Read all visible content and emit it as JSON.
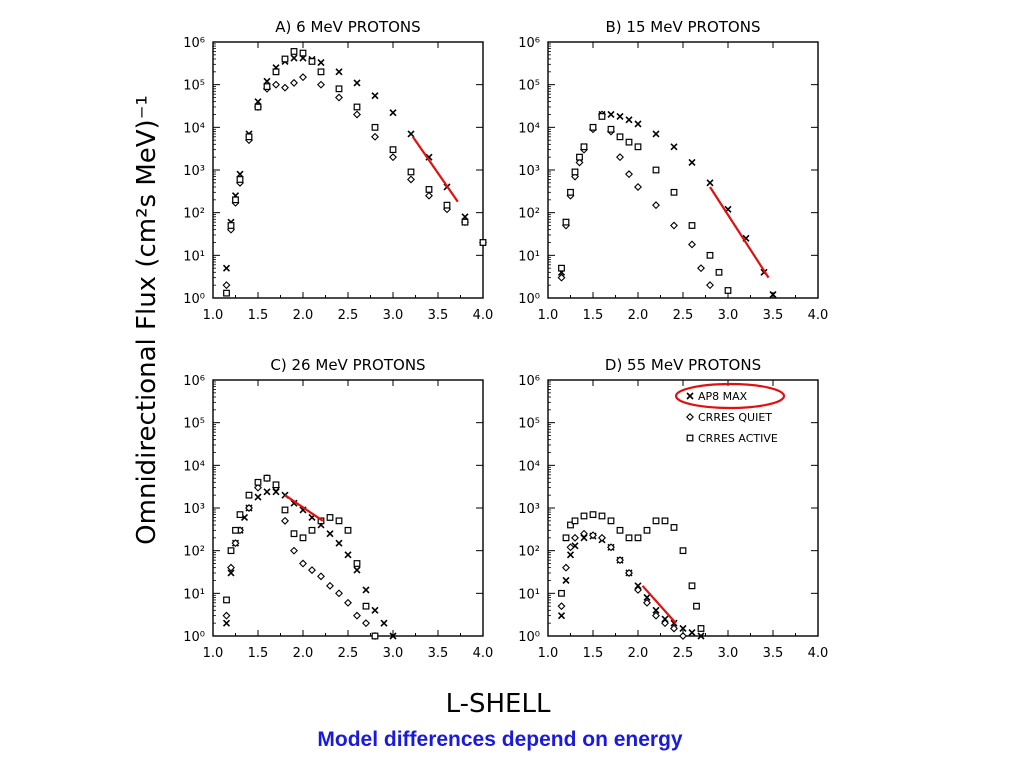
{
  "figure": {
    "y_axis_label": "Omnidirectional Flux (cm²s MeV)⁻¹",
    "x_axis_label": "L-SHELL",
    "caption": "Model differences depend on energy",
    "highlight_color": "#e01010",
    "caption_color": "#1a1adc"
  },
  "legend": {
    "entries": [
      {
        "label": "AP8 MAX",
        "marker": "x"
      },
      {
        "label": "CRRES QUIET",
        "marker": "diamond"
      },
      {
        "label": "CRRES ACTIVE",
        "marker": "square"
      }
    ],
    "circled_entry": "AP8 MAX"
  },
  "chart_data": [
    {
      "type": "scatter",
      "title": "A) 6 MeV PROTONS",
      "x_ticks": [
        "1.0",
        "1.5",
        "2.0",
        "2.5",
        "3.0",
        "3.5",
        "4.0"
      ],
      "y_ticks": [
        "10⁰",
        "10¹",
        "10²",
        "10³",
        "10⁴",
        "10⁵",
        "10⁶"
      ],
      "xlim": [
        1.0,
        4.0
      ],
      "ylim": [
        1,
        1000000
      ],
      "yscale": "log",
      "series": [
        {
          "name": "AP8 MAX",
          "marker": "x",
          "x": [
            1.15,
            1.2,
            1.25,
            1.3,
            1.4,
            1.5,
            1.6,
            1.7,
            1.8,
            1.9,
            2.0,
            2.1,
            2.2,
            2.4,
            2.6,
            2.8,
            3.0,
            3.2,
            3.4,
            3.6,
            3.8,
            4.0
          ],
          "y": [
            5,
            60,
            250,
            800,
            7000,
            40000,
            120000,
            250000,
            350000,
            420000,
            420000,
            390000,
            330000,
            200000,
            110000,
            55000,
            22000,
            7000,
            2000,
            400,
            80,
            20
          ]
        },
        {
          "name": "CRRES QUIET",
          "marker": "diamond",
          "x": [
            1.15,
            1.2,
            1.25,
            1.3,
            1.4,
            1.5,
            1.6,
            1.7,
            1.8,
            1.9,
            2.0,
            2.2,
            2.4,
            2.6,
            2.8,
            3.0,
            3.2,
            3.4,
            3.6,
            3.8,
            4.0
          ],
          "y": [
            2,
            40,
            170,
            500,
            5000,
            30000,
            80000,
            100000,
            85000,
            110000,
            150000,
            100000,
            50000,
            20000,
            6000,
            2000,
            600,
            250,
            120,
            60,
            20
          ]
        },
        {
          "name": "CRRES ACTIVE",
          "marker": "square",
          "x": [
            1.15,
            1.2,
            1.25,
            1.3,
            1.4,
            1.5,
            1.6,
            1.7,
            1.8,
            1.9,
            2.0,
            2.1,
            2.2,
            2.4,
            2.6,
            2.8,
            3.0,
            3.2,
            3.4,
            3.6,
            3.8,
            4.0
          ],
          "y": [
            1.3,
            50,
            200,
            600,
            6000,
            30000,
            90000,
            200000,
            400000,
            600000,
            550000,
            350000,
            200000,
            80000,
            30000,
            10000,
            3000,
            900,
            350,
            150,
            60,
            20
          ]
        }
      ],
      "highlight": {
        "x": [
          3.22,
          3.72
        ],
        "y": [
          6000,
          180
        ]
      }
    },
    {
      "type": "scatter",
      "title": "B) 15 MeV PROTONS",
      "x_ticks": [
        "1.0",
        "1.5",
        "2.0",
        "2.5",
        "3.0",
        "3.5",
        "4.0"
      ],
      "y_ticks": [
        "10⁰",
        "10¹",
        "10²",
        "10³",
        "10⁴",
        "10⁵",
        "10⁶"
      ],
      "xlim": [
        1.0,
        4.0
      ],
      "ylim": [
        1,
        1000000
      ],
      "yscale": "log",
      "series": [
        {
          "name": "AP8 MAX",
          "marker": "x",
          "x": [
            1.15,
            1.2,
            1.25,
            1.3,
            1.35,
            1.4,
            1.5,
            1.6,
            1.7,
            1.8,
            1.9,
            2.0,
            2.2,
            2.4,
            2.6,
            2.8,
            3.0,
            3.2,
            3.4,
            3.5
          ],
          "y": [
            4,
            60,
            300,
            900,
            2000,
            3500,
            10000,
            20000,
            20000,
            18000,
            15000,
            12000,
            7000,
            3500,
            1500,
            500,
            120,
            25,
            4,
            1.2
          ]
        },
        {
          "name": "CRRES QUIET",
          "marker": "diamond",
          "x": [
            1.15,
            1.2,
            1.25,
            1.3,
            1.35,
            1.4,
            1.5,
            1.6,
            1.7,
            1.8,
            1.9,
            2.0,
            2.2,
            2.4,
            2.6,
            2.7,
            2.8
          ],
          "y": [
            3,
            50,
            250,
            700,
            1500,
            3000,
            9000,
            20000,
            8000,
            2000,
            800,
            400,
            150,
            50,
            18,
            5,
            2
          ]
        },
        {
          "name": "CRRES ACTIVE",
          "marker": "square",
          "x": [
            1.15,
            1.2,
            1.25,
            1.3,
            1.35,
            1.4,
            1.5,
            1.6,
            1.7,
            1.8,
            1.9,
            2.0,
            2.2,
            2.4,
            2.6,
            2.8,
            2.9,
            3.0
          ],
          "y": [
            5,
            60,
            300,
            900,
            2000,
            3500,
            10000,
            18000,
            9000,
            6000,
            4500,
            3500,
            1000,
            300,
            50,
            10,
            4,
            1.5
          ]
        }
      ],
      "highlight": {
        "x": [
          2.8,
          3.45
        ],
        "y": [
          400,
          3
        ]
      }
    },
    {
      "type": "scatter",
      "title": "C) 26 MeV PROTONS",
      "x_ticks": [
        "1.0",
        "1.5",
        "2.0",
        "2.5",
        "3.0",
        "3.5",
        "4.0"
      ],
      "y_ticks": [
        "10⁰",
        "10¹",
        "10²",
        "10³",
        "10⁴",
        "10⁵",
        "10⁶"
      ],
      "xlim": [
        1.0,
        4.0
      ],
      "ylim": [
        1,
        1000000
      ],
      "yscale": "log",
      "series": [
        {
          "name": "AP8 MAX",
          "marker": "x",
          "x": [
            1.15,
            1.2,
            1.25,
            1.3,
            1.35,
            1.4,
            1.5,
            1.6,
            1.7,
            1.8,
            1.9,
            2.0,
            2.1,
            2.2,
            2.3,
            2.4,
            2.5,
            2.6,
            2.7,
            2.8,
            2.9,
            3.0
          ],
          "y": [
            2,
            30,
            150,
            300,
            600,
            1000,
            1800,
            2400,
            2400,
            2000,
            1300,
            900,
            600,
            400,
            250,
            150,
            80,
            35,
            12,
            4,
            2,
            1
          ]
        },
        {
          "name": "CRRES QUIET",
          "marker": "diamond",
          "x": [
            1.15,
            1.2,
            1.25,
            1.3,
            1.4,
            1.5,
            1.6,
            1.7,
            1.8,
            1.9,
            2.0,
            2.1,
            2.2,
            2.3,
            2.4,
            2.5,
            2.6,
            2.7,
            2.8
          ],
          "y": [
            3,
            40,
            150,
            300,
            1000,
            3000,
            5000,
            3000,
            500,
            100,
            50,
            35,
            25,
            15,
            10,
            6,
            3,
            2,
            1
          ]
        },
        {
          "name": "CRRES ACTIVE",
          "marker": "square",
          "x": [
            1.15,
            1.2,
            1.25,
            1.3,
            1.4,
            1.5,
            1.6,
            1.7,
            1.8,
            1.9,
            2.0,
            2.1,
            2.2,
            2.3,
            2.4,
            2.5,
            2.6,
            2.7,
            2.8
          ],
          "y": [
            7,
            100,
            300,
            700,
            2000,
            4000,
            5000,
            3500,
            900,
            250,
            200,
            300,
            500,
            600,
            500,
            300,
            50,
            5,
            1
          ]
        }
      ],
      "highlight": {
        "x": [
          1.8,
          2.22
        ],
        "y": [
          2000,
          500
        ]
      }
    },
    {
      "type": "scatter",
      "title": "D) 55 MeV PROTONS",
      "x_ticks": [
        "1.0",
        "1.5",
        "2.0",
        "2.5",
        "3.0",
        "3.5",
        "4.0"
      ],
      "y_ticks": [
        "10⁰",
        "10¹",
        "10²",
        "10³",
        "10⁴",
        "10⁵",
        "10⁶"
      ],
      "xlim": [
        1.0,
        4.0
      ],
      "ylim": [
        1,
        1000000
      ],
      "yscale": "log",
      "series": [
        {
          "name": "AP8 MAX",
          "marker": "x",
          "x": [
            1.15,
            1.2,
            1.25,
            1.3,
            1.4,
            1.5,
            1.6,
            1.7,
            1.8,
            1.9,
            2.0,
            2.1,
            2.2,
            2.3,
            2.4,
            2.5,
            2.6,
            2.7
          ],
          "y": [
            3,
            20,
            80,
            130,
            200,
            220,
            180,
            120,
            60,
            30,
            15,
            8,
            4,
            2.5,
            2,
            1.5,
            1.2,
            1
          ]
        },
        {
          "name": "CRRES QUIET",
          "marker": "diamond",
          "x": [
            1.15,
            1.2,
            1.25,
            1.3,
            1.4,
            1.5,
            1.6,
            1.7,
            1.8,
            1.9,
            2.0,
            2.1,
            2.2,
            2.3,
            2.4,
            2.5
          ],
          "y": [
            5,
            40,
            120,
            200,
            250,
            230,
            200,
            120,
            60,
            30,
            12,
            6,
            3,
            2,
            1.5,
            1
          ]
        },
        {
          "name": "CRRES ACTIVE",
          "marker": "square",
          "x": [
            1.15,
            1.2,
            1.25,
            1.3,
            1.4,
            1.5,
            1.6,
            1.7,
            1.8,
            1.9,
            2.0,
            2.1,
            2.2,
            2.3,
            2.4,
            2.5,
            2.6,
            2.65,
            2.7
          ],
          "y": [
            10,
            200,
            400,
            500,
            650,
            700,
            650,
            500,
            300,
            200,
            200,
            300,
            500,
            500,
            350,
            100,
            15,
            5,
            1.5
          ]
        }
      ],
      "highlight": {
        "x": [
          2.05,
          2.42
        ],
        "y": [
          15,
          2
        ]
      }
    }
  ]
}
